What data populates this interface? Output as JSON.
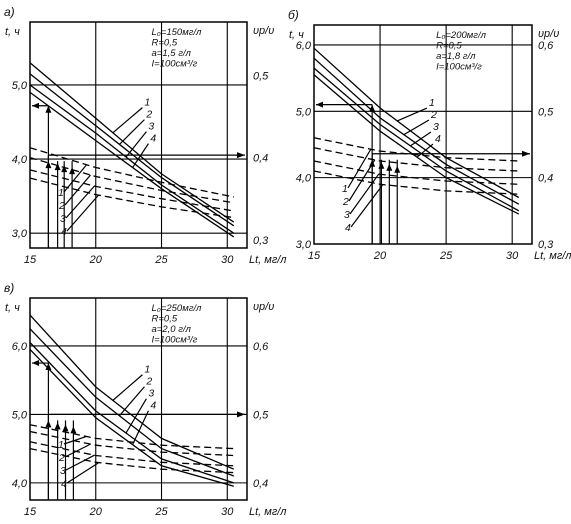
{
  "chart_data": [
    {
      "type": "line",
      "panel_label": "а)",
      "y_axis_label": "t, ч",
      "y2_axis_label": "υр/υ",
      "x_axis_label": "Lt, мг/л",
      "xlim": [
        15,
        31.5
      ],
      "ylim": [
        2.8,
        5.85
      ],
      "y2_ticks": [
        "0,3",
        "0,4",
        "0,5"
      ],
      "x_ticks": [
        "15",
        "20",
        "25",
        "30"
      ],
      "y_ticks": [
        "3,0",
        "4,0",
        "5,0"
      ],
      "params": [
        "L₀=150мг/л",
        "R=0,5",
        "a=1,5 г/л",
        "I=100см³/г"
      ],
      "curve_labels": [
        "1",
        "2",
        "3",
        "4"
      ],
      "series_time": [
        {
          "name": "1",
          "x": [
            15,
            20,
            25,
            30.5
          ],
          "y": [
            5.3,
            4.55,
            3.8,
            3.15
          ]
        },
        {
          "name": "2",
          "x": [
            15,
            20,
            25,
            30.5
          ],
          "y": [
            5.15,
            4.45,
            3.75,
            3.1
          ]
        },
        {
          "name": "3",
          "x": [
            15,
            20,
            25,
            30.5
          ],
          "y": [
            5.0,
            4.35,
            3.65,
            3.0
          ]
        },
        {
          "name": "4",
          "x": [
            15,
            20,
            25,
            30.5
          ],
          "y": [
            4.9,
            4.25,
            3.6,
            2.95
          ]
        }
      ],
      "series_ratio": [
        {
          "name": "1",
          "x": [
            15,
            20,
            25,
            30.5
          ],
          "y": [
            0.412,
            0.388,
            0.37,
            0.352
          ]
        },
        {
          "name": "2",
          "x": [
            15,
            20,
            25,
            30.5
          ],
          "y": [
            0.4,
            0.377,
            0.36,
            0.345
          ]
        },
        {
          "name": "3",
          "x": [
            15,
            20,
            25,
            30.5
          ],
          "y": [
            0.385,
            0.365,
            0.35,
            0.335
          ]
        },
        {
          "name": "4",
          "x": [
            15,
            20,
            25,
            30.5
          ],
          "y": [
            0.375,
            0.355,
            0.34,
            0.327
          ]
        }
      ]
    },
    {
      "type": "line",
      "panel_label": "б)",
      "y_axis_label": "t, ч",
      "y2_axis_label": "υр/υ",
      "x_axis_label": "Lt, мг/л",
      "xlim": [
        15,
        31.5
      ],
      "ylim": [
        3.0,
        6.3
      ],
      "y2_ticks": [
        "0,3",
        "0,4",
        "0,5",
        "0,6"
      ],
      "x_ticks": [
        "15",
        "20",
        "25",
        "30"
      ],
      "y_ticks": [
        "3,0",
        "4,0",
        "5,0",
        "6,0"
      ],
      "params": [
        "L₀=200мг/л",
        "R=0,5",
        "a=1,8 г/л",
        "I=100см³/г"
      ],
      "curve_labels": [
        "1",
        "2",
        "3",
        "4"
      ],
      "series_time": [
        {
          "name": "1",
          "x": [
            15,
            20,
            25,
            30.5
          ],
          "y": [
            5.95,
            5.05,
            4.3,
            3.7
          ]
        },
        {
          "name": "2",
          "x": [
            15,
            20,
            25,
            30.5
          ],
          "y": [
            5.8,
            4.9,
            4.2,
            3.6
          ]
        },
        {
          "name": "3",
          "x": [
            15,
            20,
            25,
            30.5
          ],
          "y": [
            5.65,
            4.8,
            4.1,
            3.5
          ]
        },
        {
          "name": "4",
          "x": [
            15,
            20,
            25,
            30.5
          ],
          "y": [
            5.55,
            4.7,
            4.0,
            3.45
          ]
        }
      ],
      "series_ratio": [
        {
          "name": "1",
          "x": [
            15,
            20,
            25,
            30.5
          ],
          "y": [
            0.46,
            0.44,
            0.43,
            0.425
          ]
        },
        {
          "name": "2",
          "x": [
            15,
            20,
            25,
            30.5
          ],
          "y": [
            0.445,
            0.425,
            0.415,
            0.41
          ]
        },
        {
          "name": "3",
          "x": [
            15,
            20,
            25,
            30.5
          ],
          "y": [
            0.425,
            0.405,
            0.395,
            0.39
          ]
        },
        {
          "name": "4",
          "x": [
            15,
            20,
            25,
            30.5
          ],
          "y": [
            0.41,
            0.39,
            0.38,
            0.375
          ]
        }
      ]
    },
    {
      "type": "line",
      "panel_label": "в)",
      "y_axis_label": "t, ч",
      "y2_axis_label": "υр/υ",
      "x_axis_label": "Lt, мг/л",
      "xlim": [
        15,
        31.5
      ],
      "ylim": [
        3.75,
        6.7
      ],
      "y2_ticks": [
        "0,4",
        "0,5",
        "0,6"
      ],
      "x_ticks": [
        "15",
        "20",
        "25",
        "30"
      ],
      "y_ticks": [
        "4,0",
        "5,0",
        "6,0"
      ],
      "params": [
        "L₀=250мг/л",
        "R=0,5",
        "a=2,0 г/л",
        "I=100см³/г"
      ],
      "curve_labels": [
        "1",
        "2",
        "3",
        "4"
      ],
      "series_time": [
        {
          "name": "1",
          "x": [
            15,
            20,
            25,
            30.5
          ],
          "y": [
            6.45,
            5.4,
            4.65,
            4.2
          ]
        },
        {
          "name": "2",
          "x": [
            15,
            20,
            25,
            30.5
          ],
          "y": [
            6.25,
            5.25,
            4.5,
            4.1
          ]
        },
        {
          "name": "3",
          "x": [
            15,
            20,
            25,
            30.5
          ],
          "y": [
            6.05,
            5.05,
            4.35,
            4.0
          ]
        },
        {
          "name": "4",
          "x": [
            15,
            20,
            25,
            30.5
          ],
          "y": [
            5.95,
            4.95,
            4.25,
            3.95
          ]
        }
      ],
      "series_ratio": [
        {
          "name": "1",
          "x": [
            15,
            20,
            25,
            30.5
          ],
          "y": [
            0.485,
            0.465,
            0.455,
            0.45
          ]
        },
        {
          "name": "2",
          "x": [
            15,
            20,
            25,
            30.5
          ],
          "y": [
            0.475,
            0.455,
            0.445,
            0.44
          ]
        },
        {
          "name": "3",
          "x": [
            15,
            20,
            25,
            30.5
          ],
          "y": [
            0.46,
            0.44,
            0.43,
            0.425
          ]
        },
        {
          "name": "4",
          "x": [
            15,
            20,
            25,
            30.5
          ],
          "y": [
            0.45,
            0.43,
            0.42,
            0.415
          ]
        }
      ]
    }
  ]
}
